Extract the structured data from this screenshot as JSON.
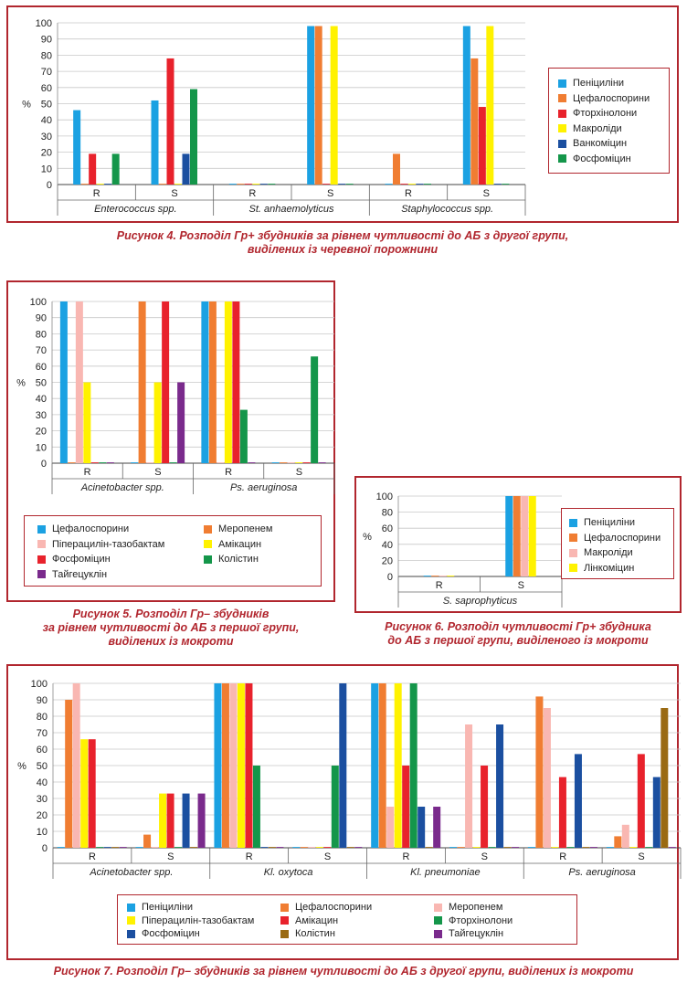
{
  "chart_data": [
    {
      "type": "bar",
      "ylabel": "%",
      "ylim": [
        0,
        100
      ],
      "yticks": [
        0,
        10,
        20,
        30,
        40,
        50,
        60,
        70,
        80,
        90,
        100
      ],
      "grid": true,
      "legend_position": "right",
      "groups": [
        {
          "name": "Enterococcus spp.",
          "categories": [
            "R",
            "S"
          ]
        },
        {
          "name": "St. anhaemolyticus",
          "categories": [
            "R",
            "S"
          ]
        },
        {
          "name": "Staphylococcus spp.",
          "categories": [
            "R",
            "S"
          ]
        }
      ],
      "series": [
        {
          "name": "Пеніциліни",
          "color": "#1ba1e2",
          "values": [
            46,
            52,
            0,
            98,
            0,
            98
          ]
        },
        {
          "name": "Цефалоспорини",
          "color": "#f07d32",
          "values": [
            0,
            0,
            0,
            98,
            19,
            78
          ]
        },
        {
          "name": "Фторхінолони",
          "color": "#e8222c",
          "values": [
            19,
            78,
            0,
            0,
            0,
            48
          ]
        },
        {
          "name": "Макроліди",
          "color": "#fff200",
          "values": [
            0,
            0,
            0,
            98,
            0,
            98
          ]
        },
        {
          "name": "Ванкоміцин",
          "color": "#1b4fa0",
          "values": [
            0,
            19,
            0,
            0,
            0,
            0
          ]
        },
        {
          "name": "Фосфоміцин",
          "color": "#14964a",
          "values": [
            19,
            59,
            0,
            0,
            0,
            0
          ]
        }
      ],
      "caption": [
        "Рисунок 4.  Розподіл Гр+ збудників за рівнем чутливості до АБ з другої групи,",
        "виділених із черевної порожнини"
      ]
    },
    {
      "type": "bar",
      "ylabel": "%",
      "ylim": [
        0,
        100
      ],
      "yticks": [
        0,
        10,
        20,
        30,
        40,
        50,
        60,
        70,
        80,
        90,
        100
      ],
      "grid": true,
      "legend_position": "bottom",
      "groups": [
        {
          "name": "Acinetobacter spp.",
          "categories": [
            "R",
            "S"
          ]
        },
        {
          "name": "Ps. aeruginosa",
          "categories": [
            "R",
            "S"
          ]
        }
      ],
      "series": [
        {
          "name": "Цефалоспорини",
          "color": "#1ba1e2",
          "values": [
            100,
            0,
            100,
            0
          ]
        },
        {
          "name": "Меропенем",
          "color": "#f07d32",
          "values": [
            0,
            100,
            100,
            0
          ]
        },
        {
          "name": "Піперацилін-тазобактам",
          "color": "#f9b7b2",
          "values": [
            100,
            0,
            0,
            0
          ]
        },
        {
          "name": "Амікацин",
          "color": "#fff200",
          "values": [
            50,
            50,
            100,
            0
          ]
        },
        {
          "name": "Фосфоміцин",
          "color": "#e8222c",
          "values": [
            0,
            100,
            100,
            0
          ]
        },
        {
          "name": "Колістин",
          "color": "#14964a",
          "values": [
            0,
            0,
            33,
            66
          ]
        },
        {
          "name": "Тайгецуклін",
          "color": "#7a2a8c",
          "values": [
            0,
            50,
            0,
            0
          ]
        }
      ],
      "caption": [
        "Рисунок 5.  Розподіл Гр– збудників",
        "за рівнем чутливості до АБ з першої групи,",
        "виділених із мокроти"
      ]
    },
    {
      "type": "bar",
      "ylabel": "%",
      "ylim": [
        0,
        100
      ],
      "yticks": [
        0,
        20,
        40,
        60,
        80,
        100
      ],
      "grid": true,
      "legend_position": "right",
      "groups": [
        {
          "name": "S. saprophyticus",
          "categories": [
            "R",
            "S"
          ]
        }
      ],
      "series": [
        {
          "name": "Пеніциліни",
          "color": "#1ba1e2",
          "values": [
            0,
            100
          ]
        },
        {
          "name": "Цефалоспорини",
          "color": "#f07d32",
          "values": [
            0,
            100
          ]
        },
        {
          "name": "Макроліди",
          "color": "#f9b7b2",
          "values": [
            0,
            100
          ]
        },
        {
          "name": "Лінкоміцин",
          "color": "#fff200",
          "values": [
            0,
            100
          ]
        }
      ],
      "caption": [
        "Рисунок 6.  Розподіл чутливості Гр+ збудника",
        "до АБ з першої групи, виділеного із мокроти"
      ]
    },
    {
      "type": "bar",
      "ylabel": "%",
      "ylim": [
        0,
        100
      ],
      "yticks": [
        0,
        10,
        20,
        30,
        40,
        50,
        60,
        70,
        80,
        90,
        100
      ],
      "grid": true,
      "legend_position": "bottom",
      "groups": [
        {
          "name": "Acinetobacter spp.",
          "categories": [
            "R",
            "S"
          ]
        },
        {
          "name": "Kl. oxytoca",
          "categories": [
            "R",
            "S"
          ]
        },
        {
          "name": "Kl. pneumoniae",
          "categories": [
            "R",
            "S"
          ]
        },
        {
          "name": "Ps. aeruginosa",
          "categories": [
            "R",
            "S"
          ]
        }
      ],
      "series": [
        {
          "name": "Пеніциліни",
          "color": "#1ba1e2",
          "values": [
            0,
            0,
            100,
            0,
            100,
            0,
            0,
            0
          ]
        },
        {
          "name": "Цефалоспорини",
          "color": "#f07d32",
          "values": [
            90,
            8,
            100,
            0,
            100,
            0,
            92,
            7
          ]
        },
        {
          "name": "Меропенем",
          "color": "#f9b7b2",
          "values": [
            100,
            0,
            100,
            0,
            25,
            75,
            85,
            14
          ]
        },
        {
          "name": "Піперацилін-тазобактам",
          "color": "#fff200",
          "values": [
            66,
            33,
            100,
            0,
            100,
            0,
            0,
            0
          ]
        },
        {
          "name": "Амікацин",
          "color": "#e8222c",
          "values": [
            66,
            33,
            100,
            0,
            50,
            50,
            43,
            57
          ]
        },
        {
          "name": "Фторхінолони",
          "color": "#14964a",
          "values": [
            0,
            0,
            50,
            50,
            100,
            0,
            0,
            0
          ]
        },
        {
          "name": "Фосфоміцин",
          "color": "#1b4fa0",
          "values": [
            0,
            33,
            0,
            100,
            25,
            75,
            57,
            43
          ]
        },
        {
          "name": "Колістин",
          "color": "#9a6a12",
          "values": [
            0,
            0,
            0,
            0,
            0,
            0,
            0,
            85
          ]
        },
        {
          "name": "Тайгецуклін",
          "color": "#7a2a8c",
          "values": [
            0,
            33,
            0,
            0,
            25,
            0,
            0,
            0
          ]
        }
      ],
      "caption": [
        "Рисунок 7.  Розподіл Гр– збудників за рівнем чутливості до АБ з другої групи, виділених із мокроти"
      ]
    }
  ]
}
